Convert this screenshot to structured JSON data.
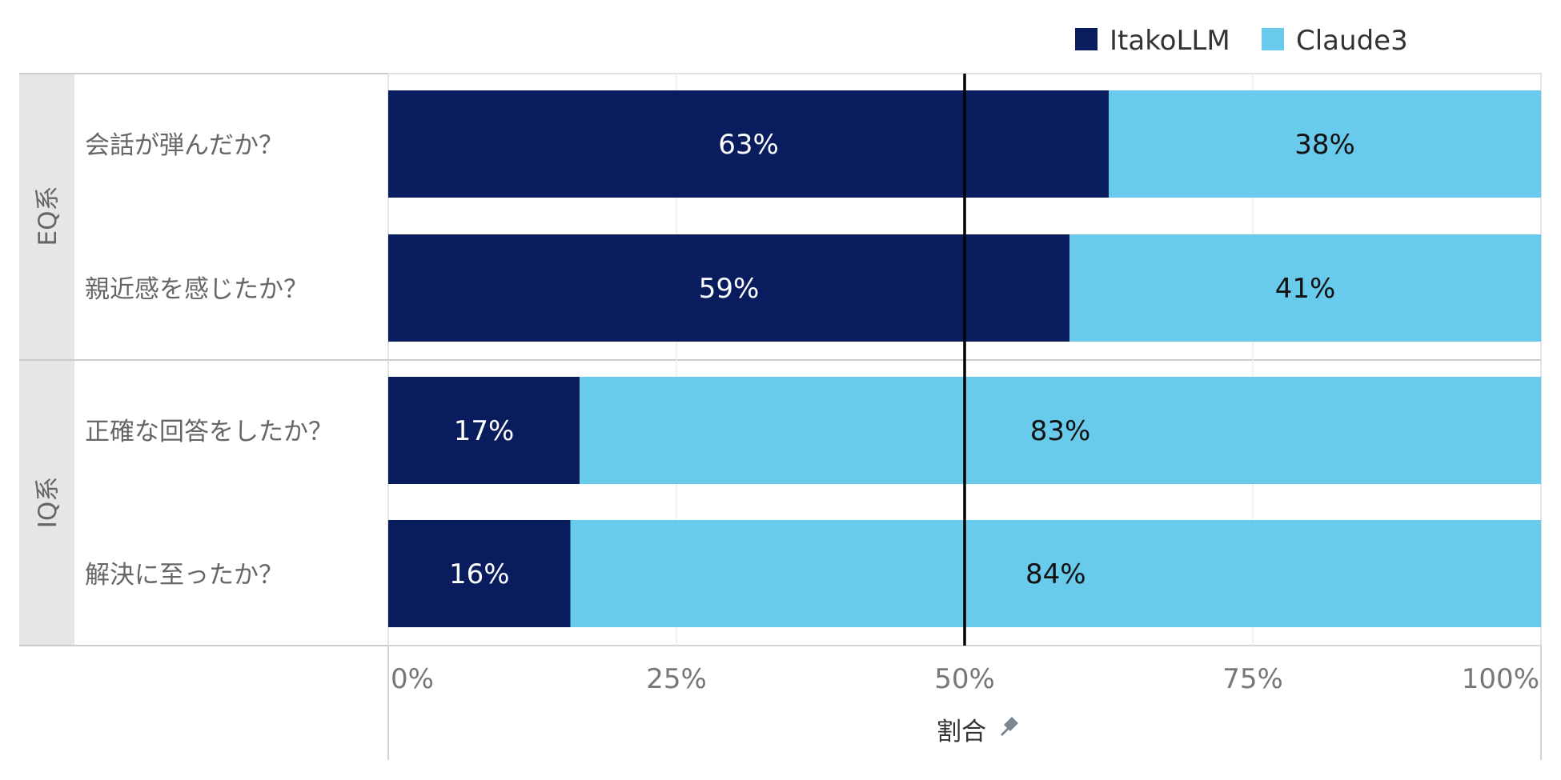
{
  "chart_data": {
    "type": "bar",
    "orientation": "horizontal",
    "stacked": true,
    "legend": {
      "placement": "top-right",
      "entries": [
        {
          "name": "ItakoLLM",
          "color": "#081c5e"
        },
        {
          "name": "Claude3",
          "color": "#68cbec"
        }
      ]
    },
    "groups": [
      {
        "label": "EQ系",
        "categories": [
          "会話が弾んだか？",
          "親近感を感じたか？"
        ]
      },
      {
        "label": "IQ系",
        "categories": [
          "正確な回答をしたか？",
          "解決に至ったか？"
        ]
      }
    ],
    "categories": [
      "会話が弾んだか？",
      "親近感を感じたか？",
      "正確な回答をしたか？",
      "解決に至ったか？"
    ],
    "series": [
      {
        "name": "ItakoLLM",
        "values": [
          62.5,
          59.1,
          16.6,
          15.8
        ],
        "labels": [
          "63%",
          "59%",
          "17%",
          "16%"
        ],
        "color": "#081c5e",
        "label_color": "#ffffff"
      },
      {
        "name": "Claude3",
        "values": [
          37.5,
          40.9,
          83.4,
          84.2
        ],
        "labels": [
          "38%",
          "41%",
          "83%",
          "84%"
        ],
        "color": "#68cbec",
        "label_color": "#111111"
      }
    ],
    "xlabel": "割合",
    "xlim": [
      0,
      100
    ],
    "xticks": [
      0,
      25,
      50,
      75,
      100
    ],
    "xtick_labels": [
      "0%",
      "25%",
      "50%",
      "75%",
      "100%"
    ],
    "reference_line": 50,
    "grid": true
  },
  "icons": {
    "axis_title_icon": "pin-icon"
  }
}
